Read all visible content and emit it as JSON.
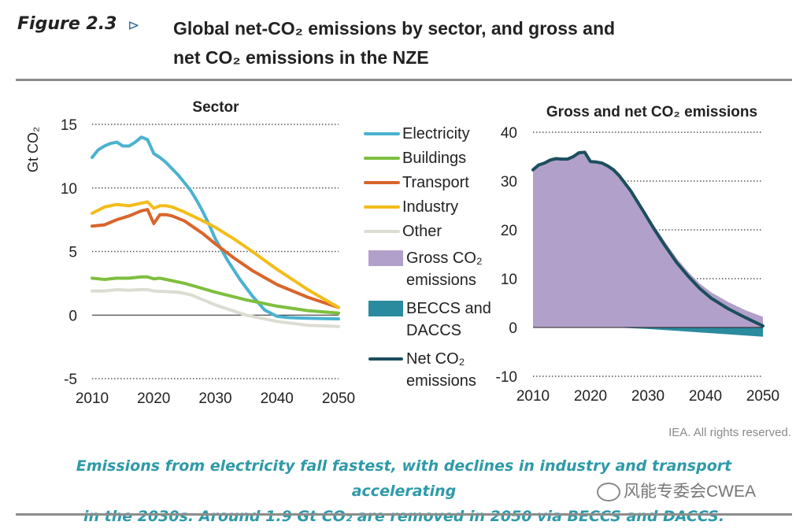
{
  "figure": {
    "label": "Figure 2.3",
    "arrow": "⊳",
    "title_line1": "Global net-CO₂ emissions by sector, and gross and",
    "title_line2": "net CO₂ emissions in the NZE"
  },
  "credit": "IEA. All rights reserved.",
  "caption": {
    "line1": "Emissions from electricity fall fastest, with declines in industry and transport accelerating",
    "line2": "in the 2030s. Around 1.9 Gt CO₂ are removed in 2050 via BECCS and DACCS."
  },
  "watermark": "风能专委会CWEA",
  "colors": {
    "electricity": "#4bb2cf",
    "buildings": "#7ebf3f",
    "transport": "#d9652b",
    "industry": "#f2bd1b",
    "other": "#dcdcd2",
    "gross": "#b1a0c9",
    "beccs": "#2a8b9e",
    "net": "#1b4e5e",
    "grid": "#555555"
  },
  "legend": [
    {
      "key": "electricity",
      "label": "Electricity",
      "kind": "line"
    },
    {
      "key": "buildings",
      "label": "Buildings",
      "kind": "line"
    },
    {
      "key": "transport",
      "label": "Transport",
      "kind": "line"
    },
    {
      "key": "industry",
      "label": "Industry",
      "kind": "line"
    },
    {
      "key": "other",
      "label": "Other",
      "kind": "line"
    },
    {
      "key": "gross",
      "label": "Gross CO₂ emissions",
      "kind": "box"
    },
    {
      "key": "beccs",
      "label": "BECCS and DACCS",
      "kind": "box"
    },
    {
      "key": "net",
      "label": "Net CO₂ emissions",
      "kind": "line"
    }
  ],
  "chart_data": [
    {
      "type": "line",
      "title": "Sector",
      "xlabel": "",
      "ylabel": "Gt CO₂",
      "xlim": [
        2010,
        2050
      ],
      "ylim": [
        -5,
        15
      ],
      "xticks": [
        2010,
        2020,
        2030,
        2040,
        2050
      ],
      "yticks": [
        -5,
        0,
        5,
        10,
        15
      ],
      "grid": true,
      "series": [
        {
          "name": "Electricity",
          "key": "electricity",
          "x": [
            2010,
            2011,
            2012,
            2013,
            2014,
            2015,
            2016,
            2017,
            2018,
            2019,
            2020,
            2021,
            2022,
            2023,
            2024,
            2025,
            2026,
            2027,
            2028,
            2029,
            2030,
            2032,
            2034,
            2036,
            2038,
            2040,
            2042,
            2045,
            2050
          ],
          "y": [
            12.4,
            13.0,
            13.3,
            13.5,
            13.6,
            13.3,
            13.3,
            13.6,
            14.0,
            13.8,
            12.7,
            12.4,
            12.0,
            11.5,
            11.0,
            10.4,
            9.8,
            9.0,
            8.1,
            7.1,
            6.0,
            4.3,
            2.8,
            1.5,
            0.4,
            -0.1,
            -0.2,
            -0.25,
            -0.3
          ]
        },
        {
          "name": "Buildings",
          "key": "buildings",
          "x": [
            2010,
            2012,
            2014,
            2016,
            2018,
            2019,
            2020,
            2021,
            2022,
            2025,
            2030,
            2035,
            2040,
            2045,
            2050
          ],
          "y": [
            2.9,
            2.8,
            2.9,
            2.9,
            3.0,
            3.0,
            2.85,
            2.9,
            2.8,
            2.5,
            1.8,
            1.2,
            0.7,
            0.35,
            0.15
          ]
        },
        {
          "name": "Transport",
          "key": "transport",
          "x": [
            2010,
            2012,
            2014,
            2016,
            2018,
            2019,
            2020,
            2021,
            2022,
            2023,
            2025,
            2028,
            2030,
            2033,
            2036,
            2040,
            2045,
            2050
          ],
          "y": [
            7.0,
            7.1,
            7.5,
            7.8,
            8.2,
            8.3,
            7.2,
            7.9,
            7.9,
            7.8,
            7.4,
            6.4,
            5.6,
            4.5,
            3.5,
            2.4,
            1.4,
            0.6
          ]
        },
        {
          "name": "Industry",
          "key": "industry",
          "x": [
            2010,
            2012,
            2014,
            2016,
            2018,
            2019,
            2020,
            2021,
            2022,
            2023,
            2025,
            2028,
            2030,
            2033,
            2036,
            2040,
            2045,
            2050
          ],
          "y": [
            8.0,
            8.5,
            8.7,
            8.6,
            8.8,
            8.9,
            8.4,
            8.6,
            8.6,
            8.5,
            8.1,
            7.4,
            6.9,
            6.0,
            5.0,
            3.6,
            2.0,
            0.6
          ]
        },
        {
          "name": "Other",
          "key": "other",
          "x": [
            2010,
            2012,
            2014,
            2016,
            2018,
            2019,
            2020,
            2022,
            2024,
            2026,
            2030,
            2035,
            2040,
            2045,
            2050
          ],
          "y": [
            1.9,
            1.9,
            2.0,
            1.95,
            2.0,
            2.0,
            1.9,
            1.85,
            1.8,
            1.6,
            0.8,
            0.0,
            -0.5,
            -0.8,
            -0.9
          ]
        }
      ]
    },
    {
      "type": "area",
      "title": "Gross and net CO₂ emissions",
      "xlabel": "",
      "ylabel": "",
      "xlim": [
        2010,
        2050
      ],
      "ylim": [
        -10,
        40
      ],
      "xticks": [
        2010,
        2020,
        2030,
        2040,
        2050
      ],
      "yticks": [
        -10,
        0,
        10,
        20,
        30,
        40
      ],
      "grid": true,
      "series": [
        {
          "name": "Gross CO₂ emissions",
          "key": "gross",
          "kind": "area",
          "x": [
            2010,
            2011,
            2012,
            2013,
            2014,
            2015,
            2016,
            2017,
            2018,
            2019,
            2020,
            2021,
            2022,
            2023,
            2024,
            2025,
            2027,
            2029,
            2031,
            2033,
            2035,
            2037,
            2039,
            2041,
            2044,
            2047,
            2050
          ],
          "y": [
            32.3,
            33.3,
            33.7,
            34.3,
            34.6,
            34.5,
            34.5,
            35.0,
            35.8,
            35.9,
            34.0,
            33.9,
            33.7,
            33.1,
            32.3,
            31.2,
            28.4,
            24.8,
            21.0,
            17.5,
            14.2,
            11.4,
            9.0,
            7.2,
            5.2,
            3.5,
            2.2
          ]
        },
        {
          "name": "BECCS and DACCS",
          "key": "beccs",
          "kind": "area",
          "x": [
            2010,
            2022,
            2025,
            2030,
            2035,
            2040,
            2045,
            2050
          ],
          "y": [
            0,
            0,
            -0.05,
            -0.3,
            -0.7,
            -1.1,
            -1.5,
            -1.9
          ]
        },
        {
          "name": "Net CO₂ emissions",
          "key": "net",
          "kind": "line",
          "x": [
            2010,
            2011,
            2012,
            2013,
            2014,
            2015,
            2016,
            2017,
            2018,
            2019,
            2020,
            2021,
            2022,
            2023,
            2024,
            2025,
            2027,
            2029,
            2031,
            2033,
            2035,
            2037,
            2039,
            2041,
            2044,
            2047,
            2050
          ],
          "y": [
            32.3,
            33.3,
            33.7,
            34.3,
            34.6,
            34.5,
            34.5,
            35.0,
            35.8,
            35.9,
            34.0,
            33.9,
            33.7,
            33.1,
            32.3,
            31.1,
            28.0,
            24.2,
            20.3,
            16.7,
            13.3,
            10.5,
            8.0,
            6.0,
            3.8,
            2.0,
            0.3
          ]
        }
      ]
    }
  ]
}
